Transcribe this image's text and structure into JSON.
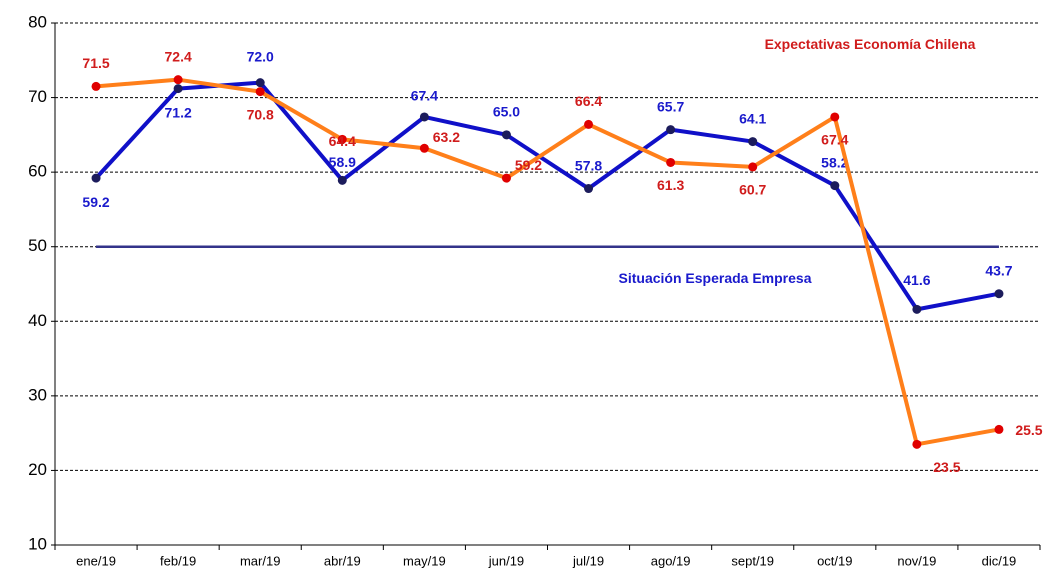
{
  "chart_data": {
    "type": "line",
    "categories": [
      "ene/19",
      "feb/19",
      "mar/19",
      "abr/19",
      "may/19",
      "jun/19",
      "jul/19",
      "ago/19",
      "sept/19",
      "oct/19",
      "nov/19",
      "dic/19"
    ],
    "series": [
      {
        "name": "Situación Esperada Empresa",
        "color": "#1010c8",
        "marker_color": "#1c1c5c",
        "label_color": "#1a1acc",
        "values": [
          59.2,
          71.2,
          72.0,
          58.9,
          67.4,
          65.0,
          57.8,
          65.7,
          64.1,
          58.2,
          41.6,
          43.7
        ],
        "value_labels": [
          "59.2",
          "71.2",
          "72.0",
          "58.9",
          "67.4",
          "65.0",
          "57.8",
          "65.7",
          "64.1",
          "58.2",
          "41.6",
          "43.7"
        ]
      },
      {
        "name": "Expectativas Economía Chilena",
        "color": "#ff7f1a",
        "marker_color": "#e00000",
        "label_color": "#d01c1c",
        "values": [
          71.5,
          72.4,
          70.8,
          64.4,
          63.2,
          59.2,
          66.4,
          61.3,
          60.7,
          67.4,
          23.5,
          25.5
        ],
        "value_labels": [
          "71.5",
          "72.4",
          "70.8",
          "64.4",
          "63.2",
          "59.2",
          "66.4",
          "61.3",
          "60.7",
          "67.4",
          "23.5",
          "25.5"
        ]
      }
    ],
    "reference_line": {
      "value": 50,
      "color": "#33338a"
    },
    "ylim": [
      10,
      80
    ],
    "yticks": [
      10,
      20,
      30,
      40,
      50,
      60,
      70,
      80
    ],
    "grid": true
  }
}
